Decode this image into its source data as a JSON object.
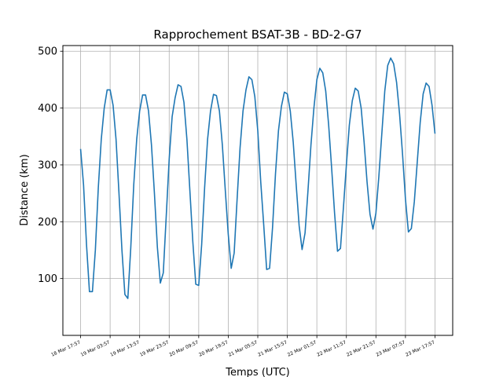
{
  "chart_data": {
    "type": "line",
    "title": "Rapprochement BSAT-3B - BD-2-G7",
    "xlabel": "Temps (UTC)",
    "ylabel": "Distance (km)",
    "ylim": [
      0,
      510
    ],
    "grid": true,
    "yticks": [
      100,
      200,
      300,
      400,
      500
    ],
    "xticks": [
      "18 Mar 17:57",
      "19 Mar 03:57",
      "19 Mar 13:57",
      "19 Mar 23:57",
      "20 Mar 09:57",
      "20 Mar 19:57",
      "21 Mar 05:57",
      "21 Mar 15:57",
      "22 Mar 01:57",
      "22 Mar 11:57",
      "22 Mar 21:57",
      "23 Mar 07:57",
      "23 Mar 17:57"
    ],
    "x_unit_hours_from": "18 Mar 17:57",
    "xlim_hours": [
      -6,
      126
    ],
    "series": [
      {
        "color": "#1f77b4",
        "x_hours": [
          0,
          1,
          2,
          3,
          4,
          5,
          6,
          7,
          8,
          9,
          10,
          11,
          12,
          13,
          14,
          15,
          16,
          17,
          18,
          19,
          20,
          21,
          22,
          23,
          24,
          25,
          26,
          27,
          28,
          29,
          30,
          31,
          32,
          33,
          34,
          35,
          36,
          37,
          38,
          39,
          40,
          41,
          42,
          43,
          44,
          45,
          46,
          47,
          48,
          49,
          50,
          51,
          52,
          53,
          54,
          55,
          56,
          57,
          58,
          59,
          60,
          61,
          62,
          63,
          64,
          65,
          66,
          67,
          68,
          69,
          70,
          71,
          72,
          73,
          74,
          75,
          76,
          77,
          78,
          79,
          80,
          81,
          82,
          83,
          84,
          85,
          86,
          87,
          88,
          89,
          90,
          91,
          92,
          93,
          94,
          95,
          96,
          97,
          98,
          99,
          100,
          101,
          102,
          103,
          104,
          105,
          106,
          107,
          108,
          109,
          110,
          111,
          112,
          113,
          114,
          115,
          116,
          117,
          118,
          119,
          120
        ],
        "y": [
          328,
          265,
          160,
          77,
          77,
          150,
          260,
          345,
          400,
          432,
          432,
          405,
          345,
          250,
          150,
          72,
          65,
          155,
          265,
          345,
          395,
          423,
          423,
          395,
          335,
          250,
          155,
          92,
          110,
          210,
          310,
          385,
          418,
          441,
          438,
          410,
          345,
          255,
          165,
          90,
          88,
          160,
          260,
          345,
          395,
          424,
          422,
          395,
          335,
          255,
          178,
          118,
          145,
          240,
          330,
          395,
          432,
          455,
          450,
          420,
          360,
          270,
          195,
          116,
          118,
          190,
          285,
          360,
          403,
          428,
          425,
          395,
          340,
          265,
          193,
          151,
          180,
          255,
          335,
          400,
          450,
          470,
          462,
          430,
          370,
          295,
          215,
          148,
          153,
          225,
          300,
          370,
          413,
          435,
          430,
          400,
          340,
          270,
          213,
          187,
          215,
          280,
          355,
          430,
          475,
          488,
          478,
          445,
          390,
          320,
          240,
          182,
          188,
          235,
          305,
          375,
          425,
          444,
          438,
          405,
          355
        ]
      }
    ]
  }
}
